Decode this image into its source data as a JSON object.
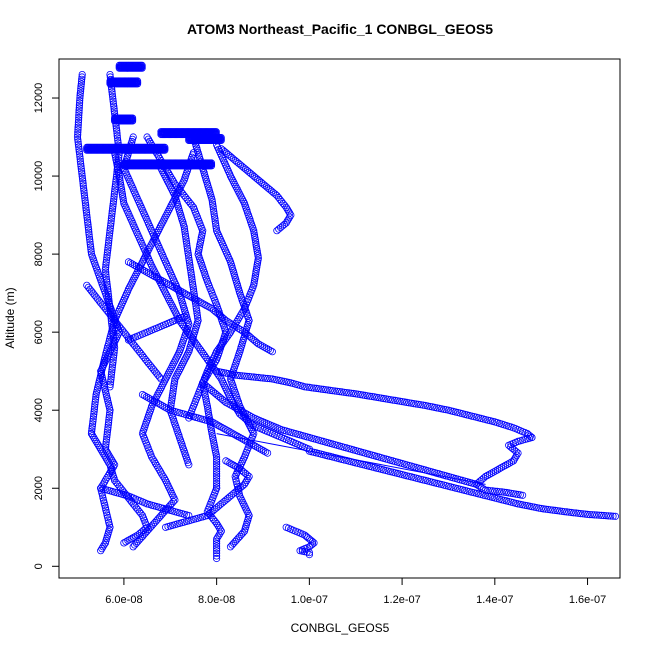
{
  "chart_data": {
    "type": "scatter",
    "title": "ATOM3 Northeast_Pacific_1 CONBGL_GEOS5",
    "xlabel": "CONBGL_GEOS5",
    "ylabel": "Altitude (m)",
    "xlim": [
      4.6e-08,
      1.67e-07
    ],
    "ylim": [
      -300,
      13000
    ],
    "x_ticks": [
      6e-08,
      8e-08,
      1e-07,
      1.2e-07,
      1.4e-07,
      1.6e-07
    ],
    "x_tick_labels": [
      "6.0e-08",
      "8.0e-08",
      "1.0e-07",
      "1.2e-07",
      "1.4e-07",
      "1.6e-07"
    ],
    "y_ticks": [
      0,
      2000,
      4000,
      6000,
      8000,
      10000,
      12000
    ],
    "y_tick_labels": [
      "0",
      "2000",
      "4000",
      "6000",
      "8000",
      "10000",
      "12000"
    ],
    "marker": "open-circle",
    "grid": false,
    "legend": "none",
    "color": "#0000ff",
    "series": [
      {
        "x": [
          5.1e-08,
          5.05e-08,
          5e-08,
          5.1e-08,
          5.2e-08,
          5.3e-08,
          5.6e-08,
          5.9e-08,
          5.5e-08,
          5.7e-08,
          5.6e-08,
          5.8e-08,
          5.5e-08,
          5.6e-08,
          5.7e-08,
          5.6e-08,
          5.5e-08
        ],
        "y": [
          12600,
          12000,
          11000,
          10000,
          9000,
          8000,
          7000,
          6000,
          5000,
          4000,
          3000,
          2600,
          2000,
          1500,
          1000,
          600,
          400
        ]
      },
      {
        "x": [
          5.8e-08,
          5.9e-08,
          6e-08,
          6.3e-08,
          6.6e-08,
          6.9e-08,
          7.2e-08,
          7.5e-08,
          7.8e-08,
          8.1e-08,
          8.3e-08,
          8.5e-08,
          8.8e-08,
          9.2e-08,
          9.6e-08,
          1e-07
        ],
        "y": [
          10600,
          10000,
          9300,
          8500,
          7700,
          7000,
          6300,
          5800,
          5300,
          4800,
          4300,
          3900,
          3600,
          3400,
          3200,
          3000
        ]
      },
      {
        "x": [
          1e-07,
          1.05e-07,
          1.1e-07,
          1.15e-07,
          1.2e-07,
          1.25e-07,
          1.3e-07,
          1.35e-07,
          1.4e-07,
          1.45e-07,
          1.5e-07,
          1.55e-07,
          1.6e-07,
          1.66e-07
        ],
        "y": [
          2950,
          2800,
          2650,
          2500,
          2350,
          2200,
          2050,
          1900,
          1750,
          1600,
          1480,
          1400,
          1330,
          1280
        ]
      },
      {
        "x": [
          8e-08,
          8.4e-08,
          8.8e-08,
          9.2e-08,
          9.6e-08,
          9.9e-08,
          1.02e-07,
          1.05e-07,
          1.1e-07,
          1.15e-07,
          1.2e-07,
          1.25e-07,
          1.3e-07,
          1.35e-07,
          1.4e-07,
          1.44e-07,
          1.47e-07,
          1.48e-07
        ],
        "y": [
          5000,
          4900,
          4850,
          4800,
          4700,
          4600,
          4550,
          4500,
          4420,
          4320,
          4220,
          4120,
          4000,
          3850,
          3700,
          3550,
          3400,
          3300
        ]
      },
      {
        "x": [
          1.48e-07,
          1.45e-07,
          1.43e-07,
          1.45e-07,
          1.44e-07,
          1.41e-07,
          1.38e-07,
          1.36e-07,
          1.38e-07,
          1.42e-07,
          1.46e-07
        ],
        "y": [
          3300,
          3200,
          3100,
          2900,
          2700,
          2500,
          2300,
          2100,
          1950,
          1900,
          1820
        ]
      },
      {
        "x": [
          1.36e-07,
          1.3e-07,
          1.24e-07,
          1.18e-07,
          1.12e-07,
          1.06e-07,
          1e-07,
          9.4e-08,
          8.8e-08,
          8.2e-08,
          7.7e-08
        ],
        "y": [
          2100,
          2300,
          2500,
          2700,
          2900,
          3100,
          3300,
          3500,
          3800,
          4200,
          4700
        ]
      },
      {
        "x": [
          6.5e-08,
          6.8e-08,
          7.1e-08,
          7.5e-08,
          7.7e-08,
          7.6e-08,
          7.8e-08,
          8e-08,
          8.2e-08,
          8e-08,
          7.7e-08,
          7.8e-08,
          7.9e-08,
          8e-08,
          8e-08
        ],
        "y": [
          11000,
          10400,
          9800,
          9200,
          8600,
          8000,
          7300,
          6700,
          6000,
          5300,
          4700,
          4100,
          3400,
          2800,
          2000
        ]
      },
      {
        "x": [
          8e-08,
          7.9e-08,
          7.8e-08,
          8e-08,
          8.1e-08,
          8e-08,
          8e-08,
          8e-08
        ],
        "y": [
          2000,
          1700,
          1400,
          1100,
          900,
          700,
          400,
          200
        ]
      },
      {
        "x": [
          7.5e-08,
          7.7e-08,
          7.9e-08,
          8e-08,
          8.3e-08,
          8.5e-08,
          8.7e-08,
          8.5e-08,
          8.3e-08,
          8.5e-08,
          8.8e-08,
          8.6e-08,
          8.4e-08,
          8.5e-08,
          8.7e-08,
          8.6e-08,
          8.3e-08
        ],
        "y": [
          11000,
          10200,
          9400,
          8600,
          7800,
          7000,
          6300,
          5500,
          4800,
          4100,
          3400,
          2800,
          2300,
          1800,
          1300,
          900,
          500
        ]
      },
      {
        "x": [
          9.5e-08,
          9.7e-08,
          9.9e-08,
          1e-07,
          1.01e-07,
          1e-07,
          9.8e-08,
          1e-07,
          1e-07
        ],
        "y": [
          1000,
          900,
          800,
          700,
          600,
          500,
          400,
          350,
          300
        ]
      },
      {
        "x": [
          6.2e-08,
          6e-08,
          6.3e-08,
          6.6e-08,
          6.9e-08,
          7.2e-08,
          7.4e-08,
          7.2e-08,
          6.9e-08,
          6.6e-08,
          6.4e-08,
          6.6e-08,
          6.9e-08,
          7.1e-08,
          6.8e-08,
          6.5e-08,
          6.2e-08
        ],
        "y": [
          11000,
          10200,
          9400,
          8600,
          7800,
          7000,
          6200,
          5500,
          4800,
          4100,
          3400,
          2800,
          2200,
          1700,
          1300,
          900,
          500
        ]
      },
      {
        "x": [
          7.5e-08,
          7.3e-08,
          7e-08,
          6.7e-08,
          6.4e-08,
          6.1e-08,
          5.8e-08,
          5.6e-08,
          5.4e-08,
          5.3e-08
        ],
        "y": [
          10600,
          9900,
          9200,
          8500,
          7800,
          7100,
          6300,
          5400,
          4400,
          3400
        ]
      },
      {
        "x": [
          5.3e-08,
          5.5e-08,
          5.7e-08,
          5.8e-08,
          6e-08,
          6.2e-08,
          6.4e-08,
          6.5e-08,
          6.3e-08,
          6e-08
        ],
        "y": [
          3400,
          3000,
          2600,
          2200,
          1900,
          1600,
          1300,
          1000,
          800,
          600
        ]
      },
      {
        "x": [
          8e-08,
          8.3e-08,
          8.6e-08,
          8.8e-08,
          8.9e-08,
          8.8e-08,
          8.6e-08,
          8.3e-08,
          8e-08,
          7.8e-08,
          7.6e-08,
          7.4e-08
        ],
        "y": [
          10800,
          10000,
          9300,
          8600,
          7900,
          7200,
          6600,
          6000,
          5500,
          5000,
          4400,
          3800
        ]
      },
      {
        "x": [
          9.3e-08,
          9.5e-08,
          9.6e-08,
          9.5e-08,
          9.3e-08,
          9e-08,
          8.7e-08,
          8.4e-08,
          8.1e-08
        ],
        "y": [
          8600,
          8800,
          9000,
          9200,
          9500,
          9800,
          10100,
          10400,
          10700
        ]
      },
      {
        "x": [
          6.8e-08,
          7.1e-08,
          7.3e-08,
          7.4e-08,
          7.5e-08,
          7.6e-08,
          7.4e-08,
          7.1e-08,
          7e-08,
          7.2e-08,
          7.4e-08
        ],
        "y": [
          10200,
          9500,
          8700,
          7900,
          7100,
          6300,
          5500,
          4800,
          4000,
          3300,
          2600
        ]
      },
      {
        "x": [
          5.7e-08,
          5.8e-08,
          5.9e-08,
          5.8e-08,
          5.7e-08,
          5.6e-08,
          5.7e-08,
          5.8e-08,
          5.7e-08
        ],
        "y": [
          12600,
          11600,
          10600,
          9600,
          8600,
          7600,
          6600,
          5600,
          4600
        ]
      },
      {
        "x": [
          6.1e-08,
          6.4e-08,
          6.7e-08,
          7e-08,
          7.3e-08,
          7.6e-08,
          7.9e-08,
          8.2e-08,
          8.6e-08,
          8.9e-08,
          9.2e-08
        ],
        "y": [
          7800,
          7600,
          7400,
          7200,
          7000,
          6800,
          6600,
          6300,
          6000,
          5700,
          5500
        ]
      },
      {
        "x": [
          5.2e-08,
          5.4e-08,
          5.6e-08,
          5.8e-08,
          6e-08,
          6.2e-08,
          6.4e-08,
          6.6e-08,
          6.8e-08
        ],
        "y": [
          7200,
          6900,
          6600,
          6300,
          6000,
          5700,
          5400,
          5100,
          4800
        ]
      },
      {
        "x": [
          6.4e-08,
          6.7e-08,
          7e-08,
          7.3e-08,
          7.6e-08,
          7.9e-08,
          8.2e-08,
          8.5e-08,
          8.8e-08,
          9.1e-08
        ],
        "y": [
          4400,
          4200,
          4000,
          3900,
          3800,
          3700,
          3500,
          3300,
          3100,
          2900
        ]
      },
      {
        "x": [
          8.2e-08,
          8.5e-08,
          8.7e-08,
          8.6e-08,
          8.4e-08,
          8.2e-08,
          8e-08,
          7.8e-08,
          7.5e-08,
          7.2e-08,
          6.9e-08
        ],
        "y": [
          2700,
          2500,
          2300,
          2100,
          1900,
          1700,
          1500,
          1300,
          1200,
          1100,
          1000
        ]
      },
      {
        "x": [
          5.5e-08,
          5.8e-08,
          6.1e-08,
          6.3e-08,
          6.5e-08,
          6.8e-08,
          7.1e-08,
          7.4e-08
        ],
        "y": [
          2000,
          1900,
          1800,
          1700,
          1600,
          1500,
          1400,
          1300
        ]
      },
      {
        "x": [
          7.3e-08,
          7.1e-08,
          6.9e-08,
          6.7e-08,
          6.5e-08,
          6.3e-08,
          6.1e-08
        ],
        "y": [
          6400,
          6300,
          6200,
          6100,
          6000,
          5900,
          5800
        ]
      }
    ],
    "line_segment": {
      "x": [
        8e-08,
        1.38e-07
      ],
      "y": [
        3400,
        2100
      ]
    },
    "horizontal_bands": [
      {
        "x": [
          5.2e-08,
          6.9e-08
        ],
        "y": 10700
      },
      {
        "x": [
          6e-08,
          7.9e-08
        ],
        "y": 10300
      },
      {
        "x": [
          6.8e-08,
          8e-08
        ],
        "y": 11100
      },
      {
        "x": [
          7.4e-08,
          8.1e-08
        ],
        "y": 10950
      },
      {
        "x": [
          5.8e-08,
          6.2e-08
        ],
        "y": 11450
      },
      {
        "x": [
          5.7e-08,
          6.3e-08
        ],
        "y": 12400
      },
      {
        "x": [
          5.9e-08,
          6.4e-08
        ],
        "y": 12800
      }
    ]
  }
}
